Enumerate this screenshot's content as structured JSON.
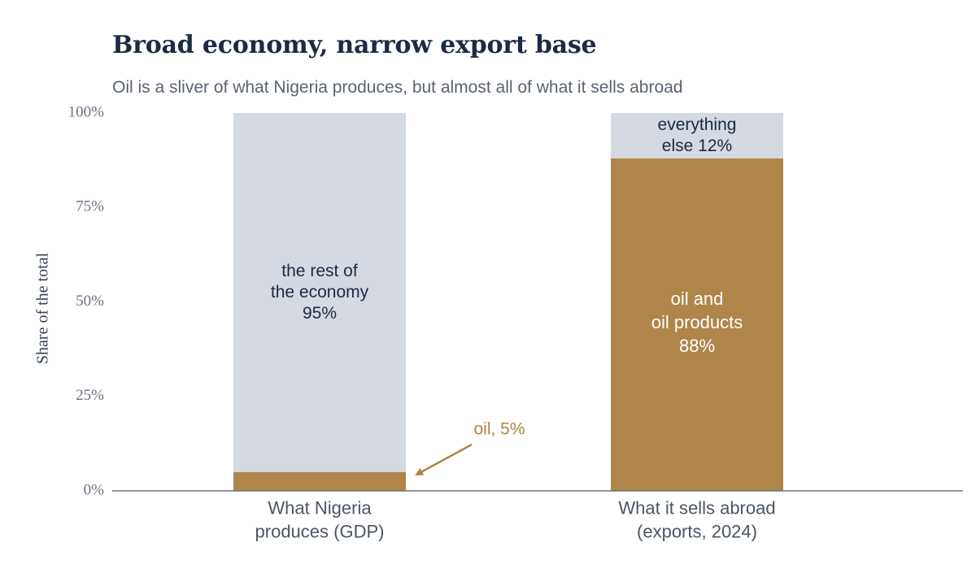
{
  "header": {
    "title": "Broad economy, narrow export base",
    "subtitle": "Oil is a sliver of what Nigeria produces, but almost all of what it sells abroad"
  },
  "colors": {
    "oil": "#b0854a",
    "rest": "#d5d9e1",
    "axis": "#6b7280",
    "title": "#1c2a44"
  },
  "chart_data": {
    "type": "bar",
    "stacked": true,
    "ylabel": "Share of the total",
    "ylim": [
      0,
      100
    ],
    "yticks": [
      0,
      25,
      50,
      75,
      100
    ],
    "ytick_labels": [
      "0%",
      "25%",
      "50%",
      "75%",
      "100%"
    ],
    "grid": false,
    "categories": [
      [
        "What Nigeria",
        "produces (GDP)"
      ],
      [
        "What it sells abroad",
        "(exports, 2024)"
      ]
    ],
    "series": [
      {
        "key": "oil",
        "values": [
          5,
          88
        ],
        "labels": [
          [],
          [
            "oil and",
            "oil products",
            "88%"
          ]
        ]
      },
      {
        "key": "rest",
        "values": [
          95,
          12
        ],
        "labels": [
          [
            "the rest of",
            "the economy",
            "95%"
          ],
          [
            "everything",
            "else 12%"
          ]
        ]
      }
    ],
    "annotations": [
      {
        "text": "oil, 5%",
        "points_to": {
          "category": 0,
          "series": "oil"
        }
      }
    ]
  }
}
